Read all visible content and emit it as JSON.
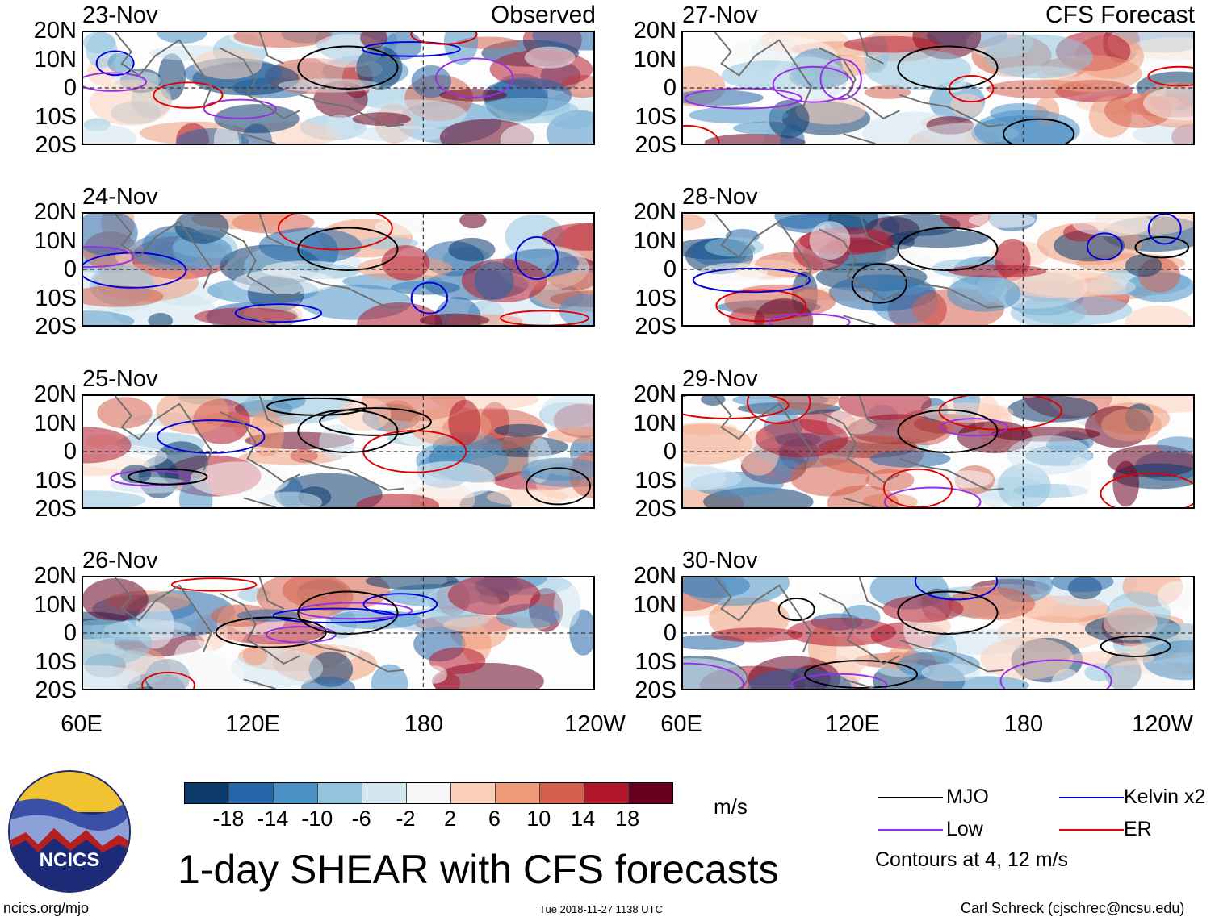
{
  "chart_data": {
    "type": "heatmap",
    "title": "1-day SHEAR with CFS forecasts",
    "units": "m/s",
    "observed_label": "Observed",
    "forecast_label": "CFS Forecast",
    "observed_dates": [
      "23-Nov",
      "24-Nov",
      "25-Nov",
      "26-Nov"
    ],
    "forecast_dates": [
      "27-Nov",
      "28-Nov",
      "29-Nov",
      "30-Nov"
    ],
    "y_ticks": [
      "20N",
      "10N",
      "0",
      "10S",
      "20S"
    ],
    "x_ticks": [
      "60E",
      "120E",
      "180",
      "120W"
    ],
    "x_range_deg": [
      60,
      240
    ],
    "y_range_deg": [
      -20,
      20
    ],
    "colorbar_labels": [
      "-18",
      "-14",
      "-10",
      "-6",
      "-2",
      "2",
      "6",
      "10",
      "14",
      "18"
    ],
    "colorbar_colors": [
      "#0b3a6b",
      "#2566a8",
      "#4a92c6",
      "#92c4de",
      "#d2e6f0",
      "#f7f7f7",
      "#fbd0b9",
      "#ef9b7a",
      "#d6604d",
      "#b2182b",
      "#67001f"
    ],
    "legend": [
      {
        "name": "MJO",
        "color": "#000000"
      },
      {
        "name": "Kelvin x2",
        "color": "#0000dd"
      },
      {
        "name": "Low",
        "color": "#9a2ee6"
      },
      {
        "name": "ER",
        "color": "#e00000"
      }
    ],
    "contour_note": "Contours at 4, 12 m/s"
  },
  "branding": {
    "logo_text": "NCICS",
    "site": "ncics.org/mjo",
    "timestamp": "Tue 2018-11-27 1138 UTC",
    "author": "Carl Schreck (cjschrec@ncsu.edu)"
  }
}
